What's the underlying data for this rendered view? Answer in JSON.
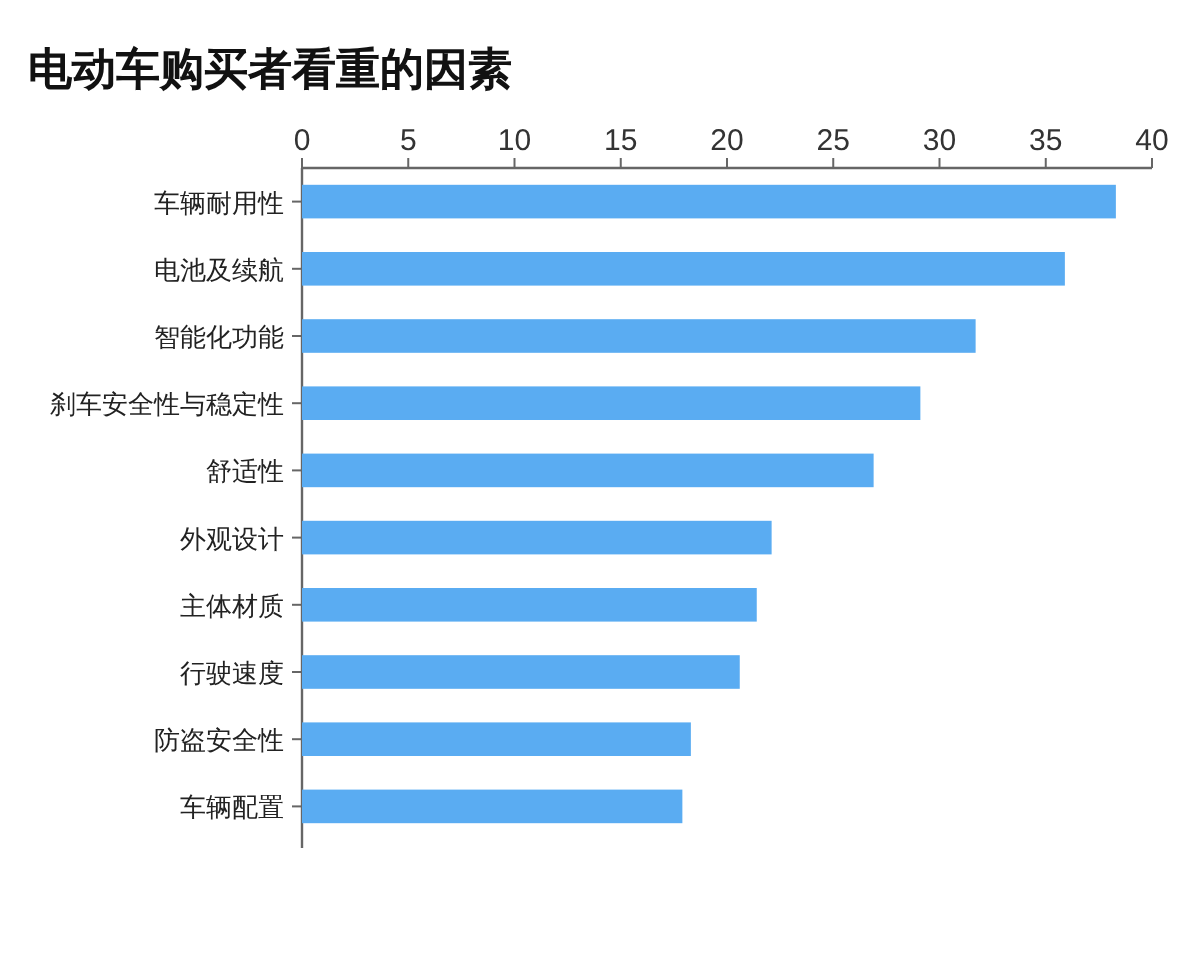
{
  "chart_data": {
    "type": "bar",
    "orientation": "horizontal",
    "title": "电动车购买者看重的因素",
    "categories": [
      "车辆耐用性",
      "电池及续航",
      "智能化功能",
      "刹车安全性与稳定性",
      "舒适性",
      "外观设计",
      "主体材质",
      "行驶速度",
      "防盗安全性",
      "车辆配置"
    ],
    "values": [
      38.3,
      35.9,
      31.7,
      29.1,
      26.9,
      22.1,
      21.4,
      20.6,
      18.3,
      17.9
    ],
    "color": "#5aacf2",
    "xlim": [
      0,
      40
    ],
    "xticks": [
      0,
      5,
      10,
      15,
      20,
      25,
      30,
      35,
      40
    ]
  }
}
